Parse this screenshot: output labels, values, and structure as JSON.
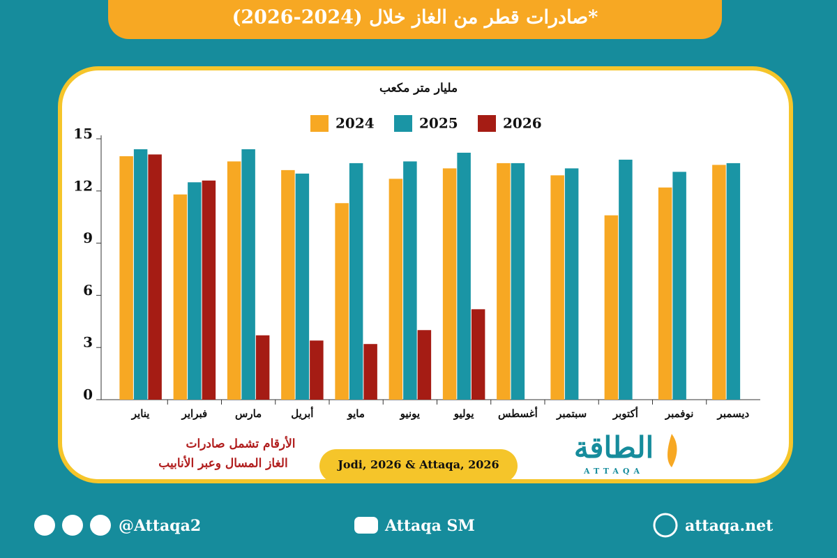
{
  "chart_data": {
    "type": "bar",
    "title": "صادرات قطر من الغاز خلال (2024-2026)*",
    "y_label": "مليار متر مكعب",
    "categories": [
      "يناير",
      "فبراير",
      "مارس",
      "أبريل",
      "مايو",
      "يونيو",
      "يوليو",
      "أغسطس",
      "سبتمبر",
      "أكتوبر",
      "نوفمبر",
      "ديسمبر"
    ],
    "series": [
      {
        "name": "2024",
        "color": "#f7a823",
        "values": [
          14.0,
          11.8,
          13.7,
          13.2,
          11.3,
          12.7,
          13.3,
          13.6,
          12.9,
          10.6,
          12.2,
          13.5
        ]
      },
      {
        "name": "2025",
        "color": "#1a95a5",
        "values": [
          14.4,
          12.5,
          14.4,
          13.0,
          13.6,
          13.7,
          14.2,
          13.6,
          13.3,
          13.8,
          13.1,
          13.6
        ]
      },
      {
        "name": "2026",
        "color": "#a51c14",
        "values": [
          14.1,
          12.6,
          3.7,
          3.4,
          3.2,
          4.0,
          5.2,
          null,
          null,
          null,
          null,
          null
        ]
      }
    ],
    "ylim": [
      0,
      15
    ],
    "yticks": [
      0,
      3,
      6,
      9,
      12,
      15
    ],
    "note": [
      "الأرقام تشمل صادرات",
      "الغاز المسال وعبر الأنابيب"
    ],
    "source": "Jodi, 2026 & Attaqa, 2026",
    "logo": {
      "arabic": "الطاقة",
      "latin": "ATTAQA"
    },
    "footer": {
      "social": "@Attaqa2",
      "youtube": "Attaqa SM",
      "website": "attaqa.net"
    }
  }
}
